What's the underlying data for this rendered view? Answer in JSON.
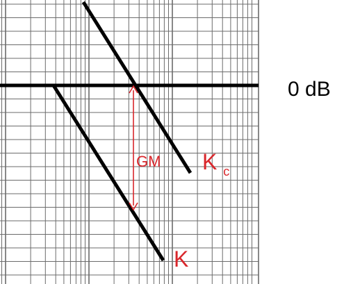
{
  "labels": {
    "zero_db": "0 dB",
    "gm": "GM",
    "kc_main": "K",
    "kc_sub": "c",
    "k": "K"
  },
  "colors": {
    "grid": "#6b6b6b",
    "line": "#000000",
    "annotation": "#d9262b"
  }
}
